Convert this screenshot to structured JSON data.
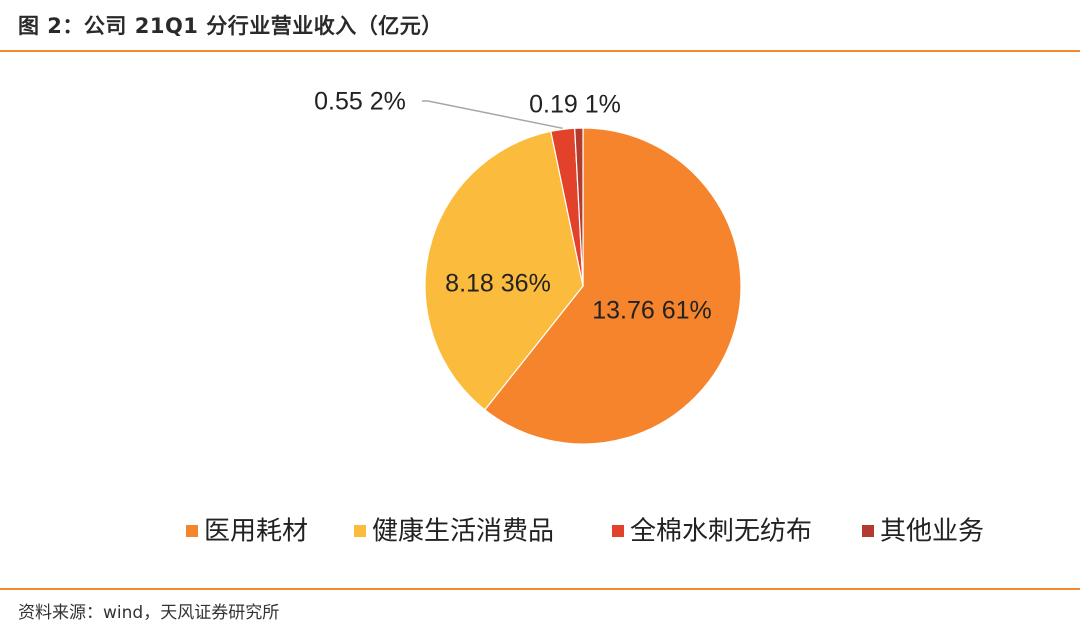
{
  "figure": {
    "title": "图 2：公司 21Q1 分行业营业收入（亿元）",
    "source": "资料来源：wind，天风证券研究所"
  },
  "chart_data": {
    "type": "pie",
    "title": "",
    "legend_position": "bottom",
    "slices": [
      {
        "name": "医用耗材",
        "value": 13.76,
        "percent": "61%",
        "color": "#f5842d"
      },
      {
        "name": "健康生活消费品",
        "value": 8.18,
        "percent": "36%",
        "color": "#fbbb3c"
      },
      {
        "name": "全棉水刺无纺布",
        "value": 0.55,
        "percent": "2%",
        "color": "#e2412a"
      },
      {
        "name": "其他业务",
        "value": 0.19,
        "percent": "1%",
        "color": "#b33a2e"
      }
    ]
  }
}
